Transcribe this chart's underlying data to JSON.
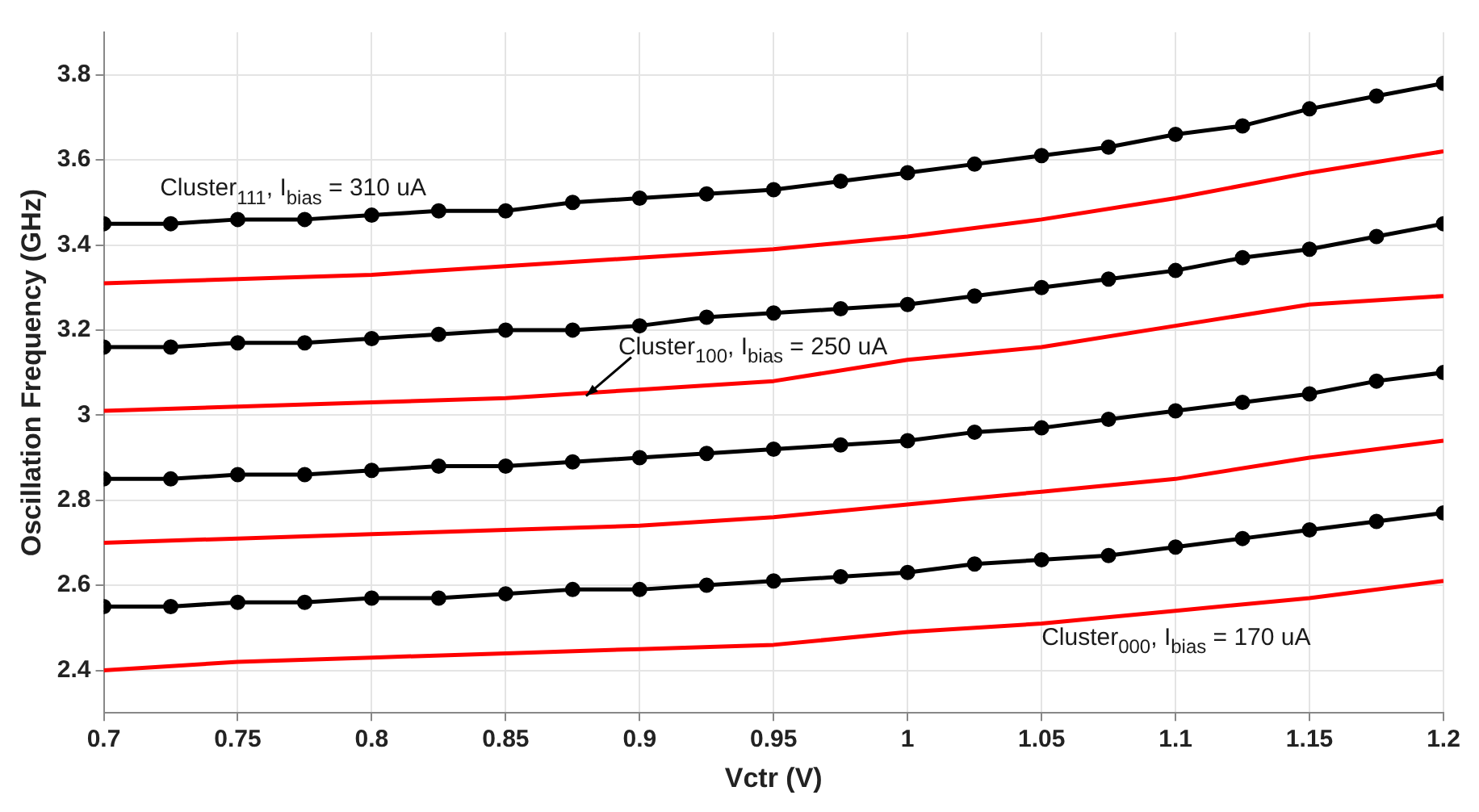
{
  "chart_data": {
    "type": "line",
    "xlabel": "Vctr (V)",
    "ylabel": "Oscillation Frequency (GHz)",
    "xlim": [
      0.7,
      1.2
    ],
    "xticks": [
      0.7,
      0.75,
      0.8,
      0.85,
      0.9,
      0.95,
      1,
      1.05,
      1.1,
      1.15,
      1.2
    ],
    "ylim": [
      2.3,
      3.9
    ],
    "yticks": [
      2.4,
      2.6,
      2.8,
      3,
      3.2,
      3.4,
      3.6,
      3.8
    ],
    "grid": true,
    "legend": false,
    "line_style": "solid",
    "series": [
      {
        "color": "#000000",
        "marker": "circle",
        "x": [
          0.7,
          0.725,
          0.75,
          0.775,
          0.8,
          0.825,
          0.85,
          0.875,
          0.9,
          0.925,
          0.95,
          0.975,
          1,
          1.025,
          1.05,
          1.075,
          1.1,
          1.125,
          1.15,
          1.175,
          1.2
        ],
        "values": [
          3.45,
          3.45,
          3.46,
          3.46,
          3.47,
          3.48,
          3.48,
          3.5,
          3.51,
          3.52,
          3.53,
          3.55,
          3.57,
          3.59,
          3.61,
          3.63,
          3.66,
          3.68,
          3.72,
          3.75,
          3.78
        ]
      },
      {
        "color": "#ff0000",
        "marker": "none",
        "x": [
          0.7,
          0.75,
          0.8,
          0.85,
          0.9,
          0.95,
          1,
          1.05,
          1.1,
          1.15,
          1.2
        ],
        "values": [
          3.31,
          3.32,
          3.33,
          3.35,
          3.37,
          3.39,
          3.42,
          3.46,
          3.51,
          3.57,
          3.62
        ]
      },
      {
        "color": "#000000",
        "marker": "circle",
        "x": [
          0.7,
          0.725,
          0.75,
          0.775,
          0.8,
          0.825,
          0.85,
          0.875,
          0.9,
          0.925,
          0.95,
          0.975,
          1,
          1.025,
          1.05,
          1.075,
          1.1,
          1.125,
          1.15,
          1.175,
          1.2
        ],
        "values": [
          3.16,
          3.16,
          3.17,
          3.17,
          3.18,
          3.19,
          3.2,
          3.2,
          3.21,
          3.23,
          3.24,
          3.25,
          3.26,
          3.28,
          3.3,
          3.32,
          3.34,
          3.37,
          3.39,
          3.42,
          3.45
        ]
      },
      {
        "color": "#ff0000",
        "marker": "none",
        "x": [
          0.7,
          0.75,
          0.8,
          0.85,
          0.9,
          0.95,
          1,
          1.05,
          1.1,
          1.15,
          1.2
        ],
        "values": [
          3.01,
          3.02,
          3.03,
          3.04,
          3.06,
          3.08,
          3.13,
          3.16,
          3.21,
          3.26,
          3.28
        ]
      },
      {
        "color": "#000000",
        "marker": "circle",
        "x": [
          0.7,
          0.725,
          0.75,
          0.775,
          0.8,
          0.825,
          0.85,
          0.875,
          0.9,
          0.925,
          0.95,
          0.975,
          1,
          1.025,
          1.05,
          1.075,
          1.1,
          1.125,
          1.15,
          1.175,
          1.2
        ],
        "values": [
          2.85,
          2.85,
          2.86,
          2.86,
          2.87,
          2.88,
          2.88,
          2.89,
          2.9,
          2.91,
          2.92,
          2.93,
          2.94,
          2.96,
          2.97,
          2.99,
          3.01,
          3.03,
          3.05,
          3.08,
          3.1
        ]
      },
      {
        "color": "#ff0000",
        "marker": "none",
        "x": [
          0.7,
          0.75,
          0.8,
          0.85,
          0.9,
          0.95,
          1,
          1.05,
          1.1,
          1.15,
          1.2
        ],
        "values": [
          2.7,
          2.71,
          2.72,
          2.73,
          2.74,
          2.76,
          2.79,
          2.82,
          2.85,
          2.9,
          2.94
        ]
      },
      {
        "color": "#000000",
        "marker": "circle",
        "x": [
          0.7,
          0.725,
          0.75,
          0.775,
          0.8,
          0.825,
          0.85,
          0.875,
          0.9,
          0.925,
          0.95,
          0.975,
          1,
          1.025,
          1.05,
          1.075,
          1.1,
          1.125,
          1.15,
          1.175,
          1.2
        ],
        "values": [
          2.55,
          2.55,
          2.56,
          2.56,
          2.57,
          2.57,
          2.58,
          2.59,
          2.59,
          2.6,
          2.61,
          2.62,
          2.63,
          2.65,
          2.66,
          2.67,
          2.69,
          2.71,
          2.73,
          2.75,
          2.77
        ]
      },
      {
        "color": "#ff0000",
        "marker": "none",
        "x": [
          0.7,
          0.75,
          0.8,
          0.85,
          0.9,
          0.95,
          1,
          1.05,
          1.1,
          1.15,
          1.2
        ],
        "values": [
          2.4,
          2.42,
          2.43,
          2.44,
          2.45,
          2.46,
          2.49,
          2.51,
          2.54,
          2.57,
          2.61
        ]
      }
    ],
    "annotations": [
      "Cluster$_{111}$, I$_{bias}$ = 310 uA",
      {
        "text": "Cluster$_{100}$, I$_{bias}$ = 250 uA",
        "x": 0.88,
        "y": 3.045
      },
      "Cluster$_{000}$, I$_{bias}$ = 170 uA"
    ]
  }
}
